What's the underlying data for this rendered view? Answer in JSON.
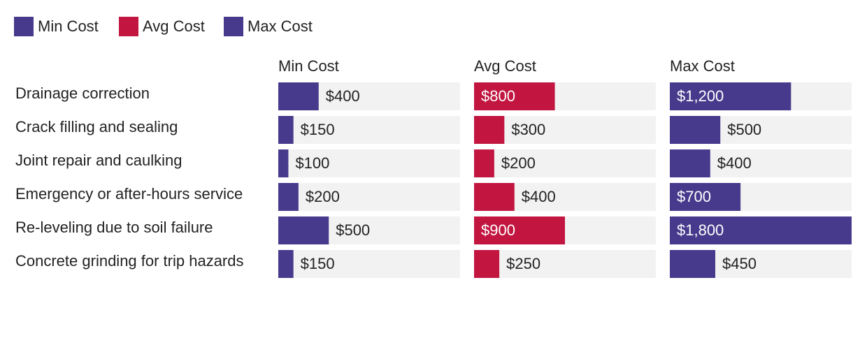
{
  "chart_data": {
    "type": "bar",
    "orientation": "horizontal",
    "layout": "small-multiples",
    "legend_position": "top-left",
    "grid": false,
    "value_prefix": "$",
    "categories": [
      "Drainage correction",
      "Crack filling and sealing",
      "Joint repair and caulking",
      "Emergency or after-hours service",
      "Re-leveling due to soil failure",
      "Concrete grinding for trip hazards"
    ],
    "series": [
      {
        "name": "Min Cost",
        "color": "#473a8c",
        "values": [
          400,
          150,
          100,
          200,
          500,
          150
        ]
      },
      {
        "name": "Avg Cost",
        "color": "#c21641",
        "values": [
          800,
          300,
          200,
          400,
          900,
          250
        ]
      },
      {
        "name": "Max Cost",
        "color": "#473a8c",
        "values": [
          1200,
          500,
          400,
          700,
          1800,
          450
        ]
      }
    ],
    "xlim": [
      0,
      1800
    ],
    "track_color": "#f2f2f2"
  }
}
